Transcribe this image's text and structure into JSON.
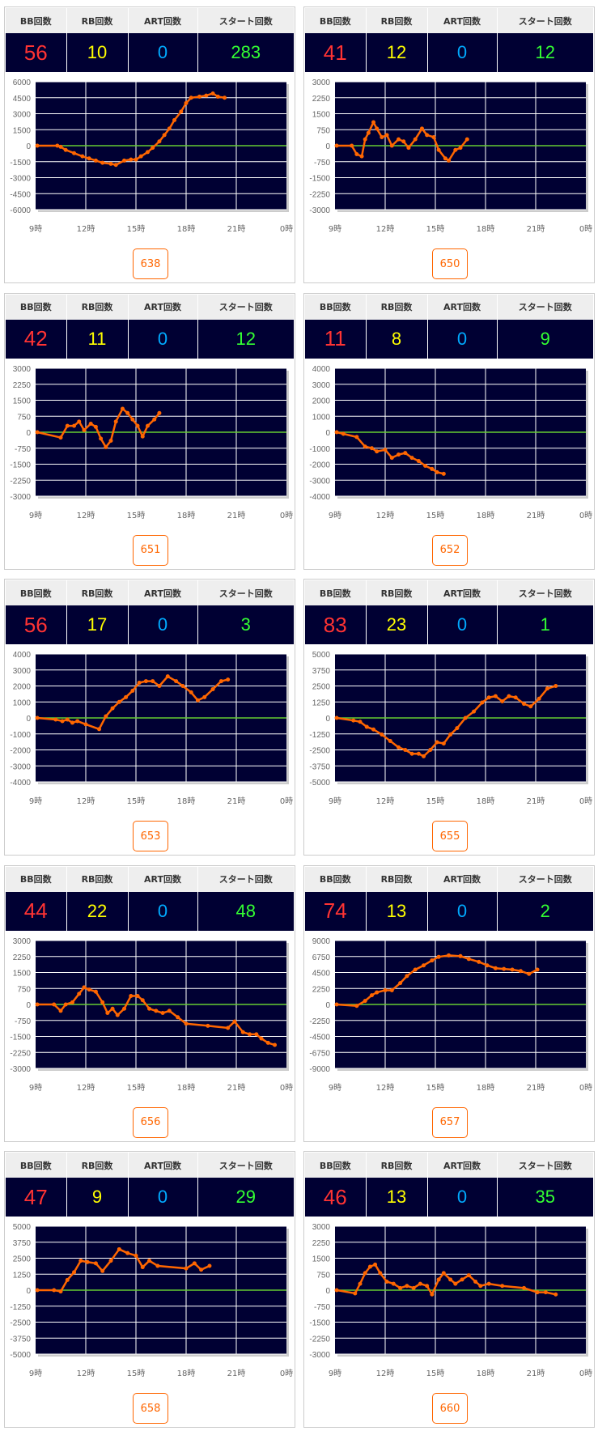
{
  "headers": {
    "bb": "BB回数",
    "rb": "RB回数",
    "art": "ART回数",
    "start": "スタート回数"
  },
  "colors": {
    "bb": "#ff3333",
    "rb": "#ffff00",
    "art": "#00aaff",
    "start": "#33ff33",
    "line": "#ff6600",
    "zero": "#66cc33",
    "plot_bg": "#000033"
  },
  "chart_data": [
    {
      "type": "line",
      "machine": "638",
      "bb": "56",
      "rb": "10",
      "art": "0",
      "start": "283",
      "ylim": [
        -6000,
        6000
      ],
      "yticks": [
        6000,
        4500,
        3000,
        1500,
        0,
        -1500,
        -3000,
        -4500,
        -6000
      ],
      "xticks": [
        "9時",
        "12時",
        "15時",
        "18時",
        "21時",
        "0時"
      ],
      "x": [
        9.1,
        10.3,
        10.5,
        10.8,
        11.3,
        11.8,
        12.2,
        12.6,
        13,
        13.5,
        13.8,
        14.3,
        14.7,
        15,
        15.3,
        15.7,
        16,
        16.4,
        16.7,
        17,
        17.3,
        17.7,
        18,
        18.3,
        18.8,
        19.2,
        19.6,
        19.9,
        20.3
      ],
      "y": [
        0,
        0,
        -100,
        -400,
        -700,
        -1000,
        -1200,
        -1400,
        -1600,
        -1700,
        -1800,
        -1400,
        -1300,
        -1300,
        -1000,
        -600,
        -200,
        400,
        1000,
        1600,
        2400,
        3200,
        4000,
        4500,
        4600,
        4700,
        4900,
        4600,
        4500
      ]
    },
    {
      "type": "line",
      "machine": "650",
      "bb": "41",
      "rb": "12",
      "art": "0",
      "start": "12",
      "ylim": [
        -3000,
        3000
      ],
      "yticks": [
        3000,
        2250,
        1500,
        750,
        0,
        -750,
        -1500,
        -2250,
        -3000
      ],
      "xticks": [
        "9時",
        "12時",
        "15時",
        "18時",
        "21時",
        "0時"
      ],
      "x": [
        9.1,
        10,
        10.3,
        10.6,
        10.8,
        11,
        11.3,
        11.5,
        11.8,
        12.1,
        12.4,
        12.8,
        13.1,
        13.4,
        13.8,
        14.2,
        14.5,
        14.9,
        15.2,
        15.6,
        15.8,
        16.2,
        16.5,
        16.9
      ],
      "y": [
        0,
        0,
        -400,
        -500,
        300,
        600,
        1100,
        800,
        400,
        500,
        0,
        300,
        200,
        -100,
        300,
        800,
        500,
        400,
        -200,
        -600,
        -700,
        -200,
        -100,
        300
      ]
    },
    {
      "type": "line",
      "machine": "651",
      "bb": "42",
      "rb": "11",
      "art": "0",
      "start": "12",
      "ylim": [
        -3000,
        3000
      ],
      "yticks": [
        3000,
        2250,
        1500,
        750,
        0,
        -750,
        -1500,
        -2250,
        -3000
      ],
      "xticks": [
        "9時",
        "12時",
        "15時",
        "18時",
        "21時",
        "0時"
      ],
      "x": [
        9.1,
        10.5,
        10.9,
        11.3,
        11.6,
        11.9,
        12.3,
        12.6,
        12.9,
        13.2,
        13.5,
        13.8,
        14.2,
        14.5,
        14.8,
        15.1,
        15.4,
        15.7,
        16.1,
        16.4
      ],
      "y": [
        0,
        -250,
        300,
        300,
        500,
        100,
        400,
        250,
        -300,
        -700,
        -400,
        500,
        1100,
        900,
        600,
        300,
        -200,
        300,
        600,
        900
      ]
    },
    {
      "type": "line",
      "machine": "652",
      "bb": "11",
      "rb": "8",
      "art": "0",
      "start": "9",
      "ylim": [
        -4000,
        4000
      ],
      "yticks": [
        4000,
        3000,
        2000,
        1000,
        0,
        -1000,
        -2000,
        -3000,
        -4000
      ],
      "xticks": [
        "9時",
        "12時",
        "15時",
        "18時",
        "21時",
        "0時"
      ],
      "x": [
        9.1,
        9.5,
        10.3,
        10.8,
        11.2,
        11.5,
        12,
        12.4,
        12.8,
        13.2,
        13.6,
        14,
        14.4,
        14.8,
        15.1,
        15.5
      ],
      "y": [
        0,
        -100,
        -300,
        -900,
        -1000,
        -1200,
        -1100,
        -1600,
        -1400,
        -1300,
        -1600,
        -1800,
        -2100,
        -2300,
        -2500,
        -2600
      ]
    },
    {
      "type": "line",
      "machine": "653",
      "bb": "56",
      "rb": "17",
      "art": "0",
      "start": "3",
      "ylim": [
        -4000,
        4000
      ],
      "yticks": [
        4000,
        3000,
        2000,
        1000,
        0,
        -1000,
        -2000,
        -3000,
        -4000
      ],
      "xticks": [
        "9時",
        "12時",
        "15時",
        "18時",
        "21時",
        "0時"
      ],
      "x": [
        9.1,
        10.2,
        10.6,
        10.9,
        11.2,
        11.5,
        12,
        12.8,
        13.2,
        13.6,
        14,
        14.4,
        14.8,
        15.2,
        15.6,
        16,
        16.4,
        16.9,
        17.4,
        17.8,
        18.3,
        18.7,
        19.1,
        19.6,
        20.1,
        20.5
      ],
      "y": [
        0,
        -100,
        -200,
        -100,
        -300,
        -200,
        -400,
        -700,
        100,
        600,
        1000,
        1300,
        1700,
        2200,
        2300,
        2300,
        2000,
        2600,
        2300,
        2000,
        1600,
        1100,
        1300,
        1800,
        2300,
        2400
      ]
    },
    {
      "type": "line",
      "machine": "655",
      "bb": "83",
      "rb": "23",
      "art": "0",
      "start": "1",
      "ylim": [
        -5000,
        5000
      ],
      "yticks": [
        5000,
        3750,
        2500,
        1250,
        0,
        -1250,
        -2500,
        -3750,
        -5000
      ],
      "xticks": [
        "9時",
        "12時",
        "15時",
        "18時",
        "21時",
        "0時"
      ],
      "x": [
        9.1,
        10.1,
        10.5,
        10.9,
        11.3,
        11.8,
        12.3,
        12.8,
        13.2,
        13.6,
        14,
        14.3,
        14.7,
        15.1,
        15.5,
        15.9,
        16.3,
        16.8,
        17.3,
        17.8,
        18.2,
        18.6,
        19,
        19.4,
        19.8,
        20.3,
        20.7,
        21.2,
        21.7,
        22.2
      ],
      "y": [
        0,
        -200,
        -300,
        -700,
        -900,
        -1300,
        -1800,
        -2300,
        -2500,
        -2800,
        -2800,
        -3000,
        -2500,
        -1900,
        -2000,
        -1300,
        -800,
        0,
        500,
        1200,
        1600,
        1700,
        1300,
        1700,
        1600,
        1100,
        900,
        1500,
        2300,
        2500
      ]
    },
    {
      "type": "line",
      "machine": "656",
      "bb": "44",
      "rb": "22",
      "art": "0",
      "start": "48",
      "ylim": [
        -3000,
        3000
      ],
      "yticks": [
        3000,
        2250,
        1500,
        750,
        0,
        -750,
        -1500,
        -2250,
        -3000
      ],
      "xticks": [
        "9時",
        "12時",
        "15時",
        "18時",
        "21時",
        "0時"
      ],
      "x": [
        9.1,
        10.1,
        10.5,
        10.8,
        11.2,
        11.6,
        11.9,
        12.2,
        12.6,
        13,
        13.3,
        13.6,
        13.9,
        14.3,
        14.7,
        15.1,
        15.4,
        15.8,
        16.2,
        16.6,
        17,
        17.5,
        18,
        19.3,
        20.5,
        20.9,
        21.4,
        21.8,
        22.2,
        22.5,
        22.9,
        23.3
      ],
      "y": [
        0,
        0,
        -300,
        0,
        100,
        500,
        800,
        700,
        600,
        100,
        -400,
        -200,
        -500,
        -200,
        400,
        400,
        200,
        -200,
        -300,
        -400,
        -300,
        -600,
        -900,
        -1000,
        -1100,
        -800,
        -1300,
        -1400,
        -1400,
        -1600,
        -1800,
        -1900
      ]
    },
    {
      "type": "line",
      "machine": "657",
      "bb": "74",
      "rb": "13",
      "art": "0",
      "start": "2",
      "ylim": [
        -9000,
        9000
      ],
      "yticks": [
        9000,
        6750,
        4500,
        2250,
        0,
        -2250,
        -4500,
        -6750,
        -9000
      ],
      "xticks": [
        "9時",
        "12時",
        "15時",
        "18時",
        "21時",
        "0時"
      ],
      "x": [
        9.1,
        10.3,
        10.8,
        11.2,
        11.5,
        12,
        12.4,
        12.9,
        13.3,
        13.8,
        14.3,
        14.8,
        15.2,
        15.8,
        16.5,
        17,
        17.6,
        18.1,
        18.6,
        19.1,
        19.6,
        20.1,
        20.6,
        21.1
      ],
      "y": [
        0,
        -200,
        500,
        1300,
        1700,
        2000,
        2000,
        3000,
        4000,
        4900,
        5500,
        6200,
        6700,
        6900,
        6800,
        6400,
        6000,
        5500,
        5100,
        5000,
        4900,
        4700,
        4300,
        4900
      ]
    },
    {
      "type": "line",
      "machine": "658",
      "bb": "47",
      "rb": "9",
      "art": "0",
      "start": "29",
      "ylim": [
        -5000,
        5000
      ],
      "yticks": [
        5000,
        3750,
        2500,
        1250,
        0,
        -1250,
        -2500,
        -3750,
        -5000
      ],
      "xticks": [
        "9時",
        "12時",
        "15時",
        "18時",
        "21時",
        "0時"
      ],
      "x": [
        9.1,
        10.1,
        10.5,
        10.9,
        11.3,
        11.7,
        12.1,
        12.6,
        13,
        13.5,
        14,
        14.5,
        15,
        15.4,
        15.8,
        16.3,
        18,
        18.5,
        18.9,
        19.4
      ],
      "y": [
        0,
        0,
        -100,
        800,
        1400,
        2300,
        2200,
        2100,
        1500,
        2300,
        3200,
        2900,
        2700,
        1800,
        2300,
        1900,
        1700,
        2100,
        1600,
        1900
      ]
    },
    {
      "type": "line",
      "machine": "660",
      "bb": "46",
      "rb": "13",
      "art": "0",
      "start": "35",
      "ylim": [
        -3000,
        3000
      ],
      "yticks": [
        3000,
        2250,
        1500,
        750,
        0,
        -750,
        -1500,
        -2250,
        -3000
      ],
      "xticks": [
        "9時",
        "12時",
        "15時",
        "18時",
        "21時",
        "0時"
      ],
      "x": [
        9.1,
        10.2,
        10.5,
        10.8,
        11.1,
        11.4,
        11.7,
        12.1,
        12.5,
        12.9,
        13.3,
        13.7,
        14.1,
        14.5,
        14.8,
        15.2,
        15.5,
        15.9,
        16.2,
        16.6,
        17,
        17.4,
        17.7,
        18.2,
        19,
        20.3,
        21.1,
        21.6,
        22.2
      ],
      "y": [
        0,
        -150,
        300,
        800,
        1100,
        1200,
        800,
        400,
        300,
        100,
        200,
        100,
        300,
        200,
        -200,
        500,
        800,
        500,
        300,
        500,
        700,
        400,
        200,
        300,
        200,
        100,
        -100,
        -100,
        -200
      ]
    }
  ]
}
